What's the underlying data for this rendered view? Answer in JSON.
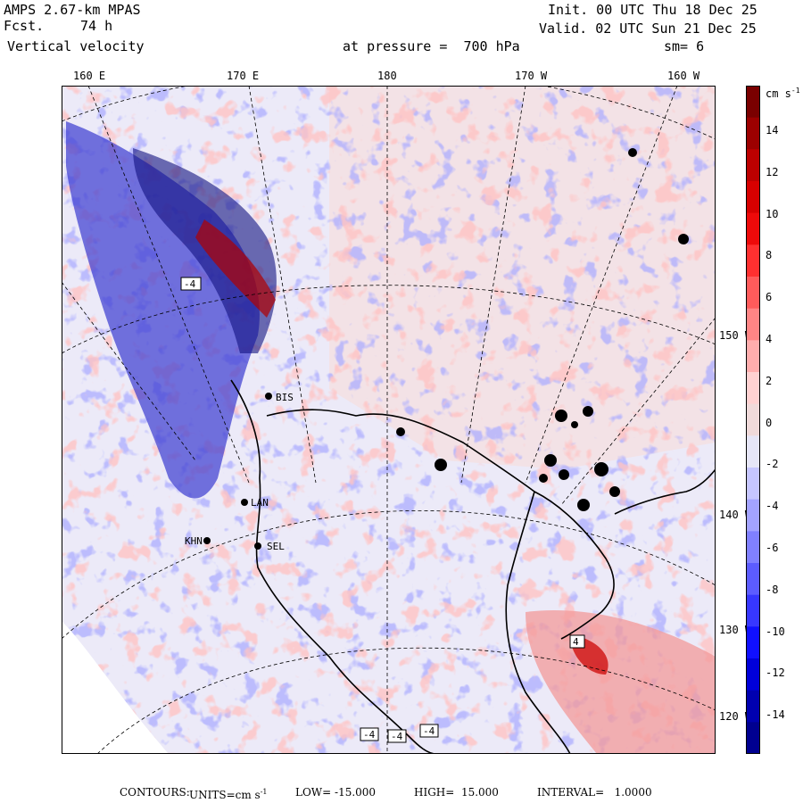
{
  "header": {
    "model": "AMPS 2.67-km MPAS",
    "fcst_label": "Fcst.",
    "fcst_value": "74 h",
    "field": "Vertical velocity",
    "init": "Init. 00 UTC Thu 18 Dec 25",
    "valid": "Valid. 02 UTC Sun 21 Dec 25",
    "pressure": "at pressure =  700 hPa",
    "smoothing": "sm= 6"
  },
  "top_axis_labels": [
    "160 E",
    "170 E",
    "180",
    "170 W",
    "160 W"
  ],
  "right_axis_labels": [
    "150 W",
    "140 W",
    "130 W",
    "120 W"
  ],
  "stations": [
    {
      "id": "BIS"
    },
    {
      "id": "LAN"
    },
    {
      "id": "SEL"
    },
    {
      "id": "KHN"
    }
  ],
  "contour_marks": [
    "-4",
    "4",
    "-4",
    "-4",
    "-4"
  ],
  "colorbar": {
    "units": "cm s",
    "units_exp": "-1",
    "labels": [
      "14",
      "12",
      "10",
      "8",
      "6",
      "4",
      "2",
      "0",
      "-2",
      "-4",
      "-6",
      "-8",
      "-10",
      "-12",
      "-14"
    ],
    "colors": [
      "#7a0000",
      "#9c0000",
      "#bd0000",
      "#d70000",
      "#ee0a0a",
      "#ff3030",
      "#ff5b5b",
      "#ff8585",
      "#ffadad",
      "#ffd1d1",
      "#f0dada",
      "#e6e6f7",
      "#c6c6ff",
      "#a3a3ff",
      "#8080ff",
      "#5c5cff",
      "#3737ff",
      "#1010ff",
      "#0000d9",
      "#0000b0",
      "#000090"
    ]
  },
  "footer": {
    "contours_label": "CONTOURS:",
    "units_label": "UNITS=cm s",
    "units_exp": "-1",
    "low": "LOW= -15.000",
    "high": "HIGH=  15.000",
    "interval": "INTERVAL=   1.0000"
  }
}
